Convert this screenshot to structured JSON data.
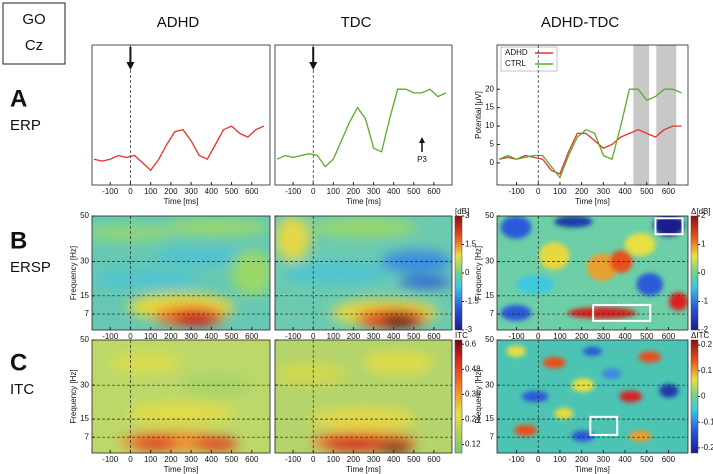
{
  "box": {
    "line1": "GO",
    "line2": "Cz"
  },
  "columns": [
    "ADHD",
    "TDC",
    "ADHD-TDC"
  ],
  "rows": [
    {
      "letter": "A",
      "name": "ERP"
    },
    {
      "letter": "B",
      "name": "ERSP"
    },
    {
      "letter": "C",
      "name": "ITC"
    }
  ],
  "chart_data": [
    {
      "type": "line",
      "xlabel": "Time [ms]",
      "xlim": [
        -190,
        690
      ],
      "xticks": [
        -100,
        0,
        100,
        200,
        300,
        400,
        500,
        600
      ],
      "ylim": [
        -6,
        32
      ],
      "x": [
        -180,
        -140,
        -100,
        -60,
        -20,
        20,
        60,
        100,
        140,
        180,
        220,
        260,
        300,
        340,
        380,
        420,
        460,
        500,
        540,
        580,
        620,
        660
      ],
      "series": [
        {
          "name": "ADHD",
          "color": "#e8322a",
          "values": [
            1,
            0.5,
            1,
            2,
            1.5,
            2,
            0,
            -2,
            1,
            5,
            8.5,
            9,
            6,
            2,
            1,
            5,
            9,
            10,
            8,
            7,
            9,
            10
          ]
        }
      ]
    },
    {
      "type": "line",
      "xlabel": "Time [ms]",
      "xlim": [
        -190,
        690
      ],
      "xticks": [
        -100,
        0,
        100,
        200,
        300,
        400,
        500,
        600
      ],
      "ylim": [
        -6,
        32
      ],
      "annotation": "P3",
      "x": [
        -180,
        -140,
        -100,
        -60,
        -20,
        20,
        60,
        100,
        140,
        180,
        220,
        260,
        300,
        340,
        380,
        420,
        460,
        500,
        540,
        580,
        620,
        660
      ],
      "series": [
        {
          "name": "CTRL",
          "color": "#5aac2e",
          "values": [
            1,
            2,
            1.5,
            2,
            2.5,
            2,
            -1,
            1,
            6,
            11,
            15,
            12,
            4,
            3,
            12,
            20,
            20,
            19,
            19,
            20,
            18,
            19
          ]
        }
      ]
    },
    {
      "type": "line",
      "xlabel": "Time [ms]",
      "ylabel": "Potential [μV]",
      "xlim": [
        -190,
        690
      ],
      "xticks": [
        -100,
        0,
        100,
        200,
        300,
        400,
        500,
        600
      ],
      "ylim": [
        -6,
        32
      ],
      "yticks": [
        0,
        5,
        10,
        15,
        20
      ],
      "legend": "top-left",
      "highlights": [
        [
          438,
          511
        ],
        [
          544,
          636
        ]
      ],
      "x": [
        -180,
        -140,
        -100,
        -60,
        -20,
        20,
        60,
        100,
        140,
        180,
        220,
        260,
        300,
        340,
        380,
        420,
        460,
        500,
        540,
        580,
        620,
        660
      ],
      "series": [
        {
          "name": "ADHD",
          "color": "#e8322a",
          "values": [
            1,
            1.5,
            1,
            2,
            1.5,
            1,
            -2,
            -3,
            3,
            8,
            8,
            6,
            4,
            5,
            7,
            8,
            9,
            8,
            7,
            9,
            10,
            10
          ]
        },
        {
          "name": "CTRL",
          "color": "#5aac2e",
          "values": [
            1,
            2,
            1,
            1.5,
            2,
            2,
            -1,
            -4,
            2,
            7,
            9,
            8,
            2,
            1,
            10,
            20,
            20,
            17,
            18,
            20,
            20,
            19
          ]
        }
      ]
    },
    {
      "type": "heatmap",
      "xlabel": "Time [ms]",
      "ylabel": "Frequency [Hz]",
      "xlim": [
        -190,
        690
      ],
      "xticks": [
        -100,
        0,
        100,
        200,
        300,
        400,
        500,
        600
      ],
      "ylim": [
        0,
        50
      ],
      "yticks": [
        7,
        15,
        30,
        50
      ]
    },
    {
      "type": "heatmap",
      "xlabel": "Time [ms]",
      "xlim": [
        -190,
        690
      ],
      "xticks": [
        -100,
        0,
        100,
        200,
        300,
        400,
        500,
        600
      ],
      "ylim": [
        0,
        50
      ],
      "yticks": [
        7,
        15,
        30,
        50
      ],
      "colorbar": {
        "label": "[dB]",
        "lim": [
          -3,
          3
        ],
        "ticks": [
          3,
          1.5,
          0,
          -1.5,
          -3
        ]
      }
    },
    {
      "type": "heatmap",
      "xlabel": "Time [ms]",
      "ylabel": "Frequency [Hz]",
      "xlim": [
        -190,
        690
      ],
      "xticks": [
        -100,
        0,
        100,
        200,
        300,
        400,
        500,
        600
      ],
      "ylim": [
        0,
        50
      ],
      "yticks": [
        7,
        15,
        30,
        50
      ],
      "boxes": [
        [
          [
            540,
            665
          ],
          [
            42,
            49
          ]
        ],
        [
          [
            253,
            516
          ],
          [
            4,
            11
          ]
        ]
      ],
      "colorbar": {
        "label": "Δ[dB]",
        "lim": [
          -2,
          2
        ],
        "ticks": [
          2,
          1,
          0,
          -1,
          -2
        ]
      }
    },
    {
      "type": "heatmap",
      "xlabel": "Time [ms]",
      "ylabel": "Frequency [Hz]",
      "xlim": [
        -190,
        690
      ],
      "xticks": [
        -100,
        0,
        100,
        200,
        300,
        400,
        500,
        600
      ],
      "ylim": [
        0,
        50
      ],
      "yticks": [
        7,
        15,
        30,
        50
      ]
    },
    {
      "type": "heatmap",
      "xlabel": "Time [ms]",
      "xlim": [
        -190,
        690
      ],
      "xticks": [
        -100,
        0,
        100,
        200,
        300,
        400,
        500,
        600
      ],
      "ylim": [
        0,
        50
      ],
      "yticks": [
        7,
        15,
        30,
        50
      ],
      "colorbar": {
        "label": "ITC",
        "lim": [
          0.08,
          0.62
        ],
        "ticks": [
          0.6,
          0.48,
          0.36,
          0.24,
          0.12
        ]
      }
    },
    {
      "type": "heatmap",
      "xlabel": "Time [ms]",
      "ylabel": "Frequency [Hz]",
      "xlim": [
        -190,
        690
      ],
      "xticks": [
        -100,
        0,
        100,
        200,
        300,
        400,
        500,
        600
      ],
      "ylim": [
        0,
        50
      ],
      "yticks": [
        7,
        15,
        30,
        50
      ],
      "boxes": [
        [
          [
            240,
            364
          ],
          [
            8,
            16
          ]
        ]
      ],
      "colorbar": {
        "label": "ΔITC",
        "lim": [
          -0.22,
          0.22
        ],
        "ticks": [
          0.2,
          0.1,
          0,
          -0.1,
          -0.2
        ]
      }
    }
  ]
}
